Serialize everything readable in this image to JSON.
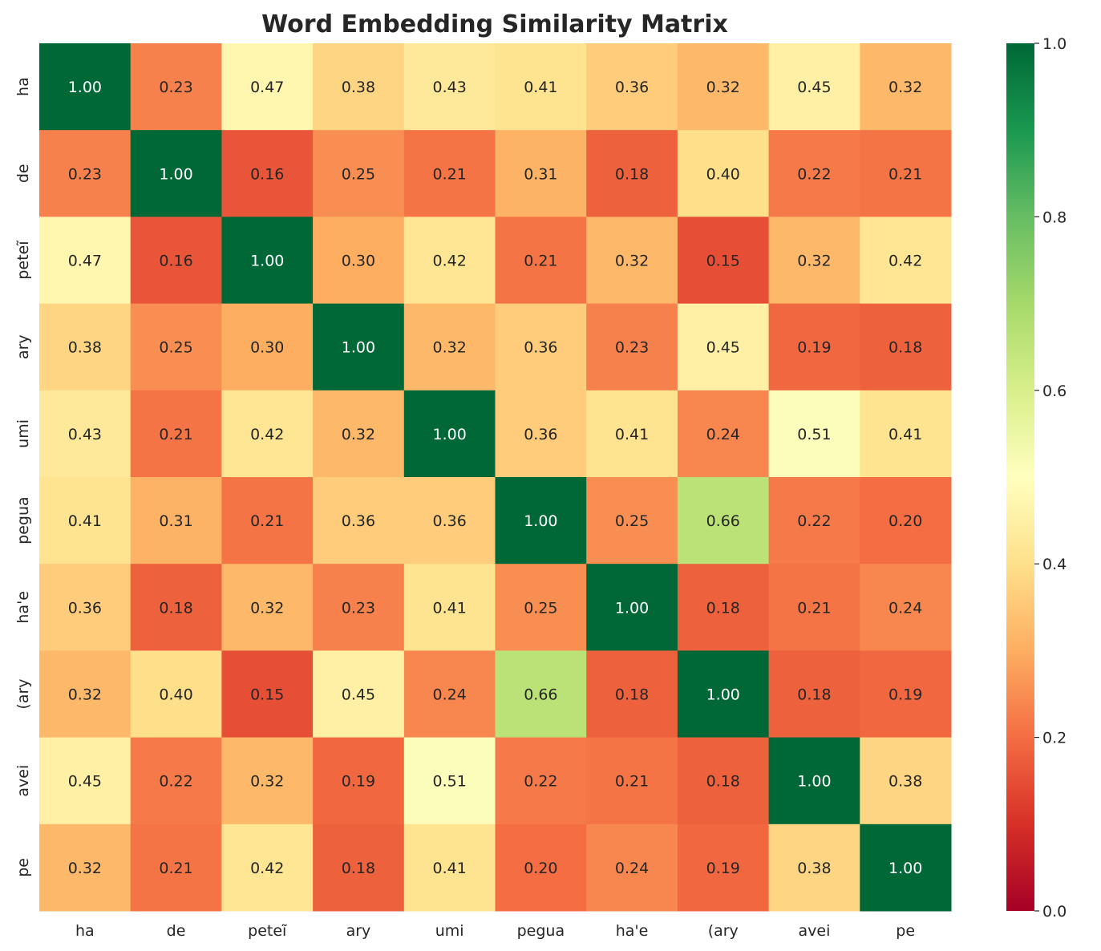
{
  "chart_data": {
    "type": "heatmap",
    "title": "Word Embedding Similarity Matrix",
    "xlabel": "",
    "ylabel": "",
    "x_labels": [
      "ha",
      "de",
      "peteĩ",
      "ary",
      "umi",
      "pegua",
      "ha'e",
      "(ary",
      "avei",
      "pe"
    ],
    "y_labels": [
      "ha",
      "de",
      "peteĩ",
      "ary",
      "umi",
      "pegua",
      "ha'e",
      "(ary",
      "avei",
      "pe"
    ],
    "values": [
      [
        1.0,
        0.23,
        0.47,
        0.38,
        0.43,
        0.41,
        0.36,
        0.32,
        0.45,
        0.32
      ],
      [
        0.23,
        1.0,
        0.16,
        0.25,
        0.21,
        0.31,
        0.18,
        0.4,
        0.22,
        0.21
      ],
      [
        0.47,
        0.16,
        1.0,
        0.3,
        0.42,
        0.21,
        0.32,
        0.15,
        0.32,
        0.42
      ],
      [
        0.38,
        0.25,
        0.3,
        1.0,
        0.32,
        0.36,
        0.23,
        0.45,
        0.19,
        0.18
      ],
      [
        0.43,
        0.21,
        0.42,
        0.32,
        1.0,
        0.36,
        0.41,
        0.24,
        0.51,
        0.41
      ],
      [
        0.41,
        0.31,
        0.21,
        0.36,
        0.36,
        1.0,
        0.25,
        0.66,
        0.22,
        0.2
      ],
      [
        0.36,
        0.18,
        0.32,
        0.23,
        0.41,
        0.25,
        1.0,
        0.18,
        0.21,
        0.24
      ],
      [
        0.32,
        0.4,
        0.15,
        0.45,
        0.24,
        0.66,
        0.18,
        1.0,
        0.18,
        0.19
      ],
      [
        0.45,
        0.22,
        0.32,
        0.19,
        0.51,
        0.22,
        0.21,
        0.18,
        1.0,
        0.38
      ],
      [
        0.32,
        0.21,
        0.42,
        0.18,
        0.41,
        0.2,
        0.24,
        0.19,
        0.38,
        1.0
      ]
    ],
    "value_format": "0.00",
    "colormap": "RdYlGn",
    "colormap_stops": [
      "#a50026",
      "#d73027",
      "#f46d43",
      "#fdae61",
      "#fee08b",
      "#ffffbf",
      "#d9ef8b",
      "#a6d96a",
      "#66bd63",
      "#1a9850",
      "#006837"
    ],
    "vmin": 0.0,
    "vmax": 1.0,
    "colorbar_ticks": [
      "0.0",
      "0.2",
      "0.4",
      "0.6",
      "0.8",
      "1.0"
    ],
    "grid": false,
    "legend": "colorbar-right"
  }
}
